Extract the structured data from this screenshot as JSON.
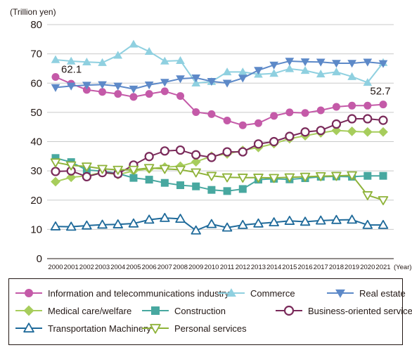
{
  "chart_data": {
    "type": "line",
    "unit_label": "(Trillion yen)",
    "x_unit": "(Year)",
    "x": [
      "2000",
      "2001",
      "2002",
      "2003",
      "2004",
      "2005",
      "2006",
      "2007",
      "2008",
      "2009",
      "2010",
      "2011",
      "2012",
      "2013",
      "2014",
      "2015",
      "2016",
      "2017",
      "2018",
      "2019",
      "2020",
      "2021"
    ],
    "ylim": [
      0,
      80
    ],
    "yticks": [
      0,
      10,
      20,
      30,
      40,
      50,
      60,
      70,
      80
    ],
    "grid": "horizontal",
    "legend_position": "bottom",
    "annotations": [
      {
        "text": "62.1",
        "series": "Information and telecommunications industry",
        "year": "2000"
      },
      {
        "text": "52.7",
        "series": "Information and telecommunications industry",
        "year": "2021"
      }
    ],
    "series": [
      {
        "name": "Information and telecommunications industry",
        "color": "#c45aa8",
        "marker": "circle",
        "values": [
          62.1,
          59.8,
          57.7,
          57.0,
          56.3,
          55.3,
          56.3,
          57.2,
          55.6,
          50.1,
          49.4,
          47.2,
          45.6,
          46.3,
          48.8,
          50.0,
          49.8,
          50.7,
          51.9,
          52.3,
          52.3,
          52.7
        ]
      },
      {
        "name": "Commerce",
        "color": "#8fd0e0",
        "marker": "triangle-up",
        "values": [
          68.0,
          67.5,
          67.2,
          67.0,
          69.5,
          73.3,
          70.8,
          67.5,
          67.7,
          60.0,
          60.5,
          63.8,
          63.8,
          63.0,
          63.3,
          64.9,
          64.3,
          63.1,
          63.8,
          62.2,
          60.2,
          67.0
        ]
      },
      {
        "name": "Real estate",
        "color": "#5d89c8",
        "marker": "triangle-down",
        "values": [
          58.5,
          59.0,
          59.3,
          59.5,
          59.0,
          58.0,
          59.4,
          60.3,
          61.5,
          61.8,
          60.6,
          60.0,
          61.7,
          64.4,
          66.2,
          67.5,
          67.3,
          67.2,
          66.8,
          66.8,
          67.2,
          66.7
        ]
      },
      {
        "name": "Medical care/welfare",
        "color": "#a7cd5c",
        "marker": "diamond",
        "values": [
          26.3,
          27.8,
          28.3,
          29.5,
          28.7,
          30.0,
          30.7,
          31.3,
          31.6,
          33.1,
          35.0,
          35.8,
          37.0,
          38.0,
          39.3,
          41.0,
          42.0,
          43.0,
          43.8,
          43.5,
          43.3,
          43.3
        ]
      },
      {
        "name": "Construction",
        "color": "#48a8a0",
        "marker": "square",
        "values": [
          34.4,
          33.0,
          30.3,
          29.9,
          29.1,
          27.6,
          27.0,
          25.9,
          25.1,
          24.7,
          23.5,
          23.1,
          23.8,
          27.0,
          27.3,
          27.1,
          27.5,
          28.0,
          28.1,
          28.0,
          28.3,
          28.3
        ]
      },
      {
        "name": "Business-oriented services",
        "color": "#7a2a5a",
        "marker": "circle-open",
        "values": [
          29.8,
          30.0,
          28.0,
          29.4,
          29.0,
          32.0,
          34.9,
          36.8,
          37.1,
          35.5,
          34.6,
          36.5,
          36.5,
          39.2,
          40.0,
          41.8,
          43.3,
          43.8,
          46.0,
          47.8,
          47.8,
          47.3
        ]
      },
      {
        "name": "Transportation Machinery",
        "color": "#1f6a9a",
        "marker": "triangle-up-open",
        "values": [
          11.0,
          10.9,
          11.3,
          11.6,
          11.7,
          12.0,
          13.3,
          13.9,
          13.6,
          9.6,
          11.8,
          10.6,
          11.5,
          12.0,
          12.4,
          12.9,
          12.6,
          13.0,
          13.2,
          13.3,
          11.5,
          11.5
        ]
      },
      {
        "name": "Personal services",
        "color": "#8fb33a",
        "marker": "triangle-down-open",
        "values": [
          32.9,
          31.9,
          31.5,
          30.7,
          30.4,
          30.4,
          31.0,
          30.7,
          30.4,
          29.5,
          28.3,
          27.8,
          27.7,
          27.7,
          27.6,
          27.8,
          28.0,
          28.2,
          28.3,
          28.5,
          21.7,
          20.0
        ]
      }
    ]
  }
}
